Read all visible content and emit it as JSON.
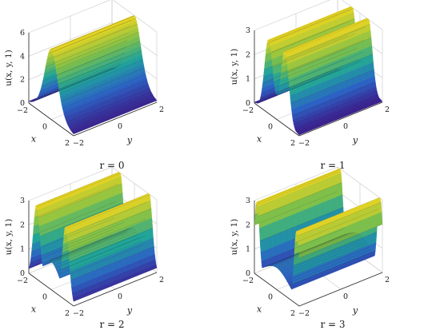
{
  "chart_data": [
    {
      "type": "surface",
      "caption": "r = 0",
      "r": 0,
      "zlabel": "u(x, y, 1)",
      "xlabel": "x",
      "ylabel": "y",
      "xlim": [
        -2,
        2
      ],
      "ylim": [
        -2,
        2
      ],
      "zlim": [
        0,
        6
      ],
      "xticks": [
        "−2",
        "0",
        "2"
      ],
      "yticks": [
        "−2",
        "0",
        "2"
      ],
      "zticks": [
        "0",
        "2",
        "4",
        "6"
      ],
      "peak_height": 6,
      "profile": "single central peak at x = 0"
    },
    {
      "type": "surface",
      "caption": "r = 1",
      "r": 1,
      "zlabel": "u(x, y, 1)",
      "xlabel": "x",
      "ylabel": "y",
      "xlim": [
        -2,
        2
      ],
      "ylim": [
        -2,
        2
      ],
      "zlim": [
        0,
        3
      ],
      "xticks": [
        "−2",
        "0",
        "2"
      ],
      "yticks": [
        "−2",
        "0",
        "2"
      ],
      "zticks": [
        "0",
        "1",
        "2",
        "3"
      ],
      "peak_height": 3.1,
      "profile": "two close peaks with shallow central dip"
    },
    {
      "type": "surface",
      "caption": "r = 2",
      "r": 2,
      "zlabel": "u(x, y, 1)",
      "xlabel": "x",
      "ylabel": "y",
      "xlim": [
        -2,
        2
      ],
      "ylim": [
        -2,
        2
      ],
      "zlim": [
        0,
        3
      ],
      "xticks": [
        "−2",
        "0",
        "2"
      ],
      "yticks": [
        "−2",
        "0",
        "2"
      ],
      "zticks": [
        "0",
        "1",
        "2",
        "3"
      ],
      "peak_height": 3.1,
      "profile": "two separated peaks with central valley"
    },
    {
      "type": "surface",
      "caption": "r = 3",
      "r": 3,
      "zlabel": "u(x, y, 1)",
      "xlabel": "x",
      "ylabel": "y",
      "xlim": [
        -2,
        2
      ],
      "ylim": [
        -2,
        2
      ],
      "zlim": [
        0,
        3
      ],
      "xticks": [
        "−2",
        "0",
        "2"
      ],
      "yticks": [
        "−2",
        "0",
        "2"
      ],
      "zticks": [
        "0",
        "1",
        "2",
        "3"
      ],
      "peak_height": 3.1,
      "profile": "two peaks near edges with wide central valley"
    }
  ],
  "colors": {
    "low": "#3b1c8c",
    "mid_low": "#2b63c4",
    "mid": "#1fa39a",
    "mid_high": "#7fc04a",
    "high": "#e8d422",
    "grid": "#c8c8c8",
    "axis": "#262626",
    "mesh": "#1b1b1b"
  }
}
